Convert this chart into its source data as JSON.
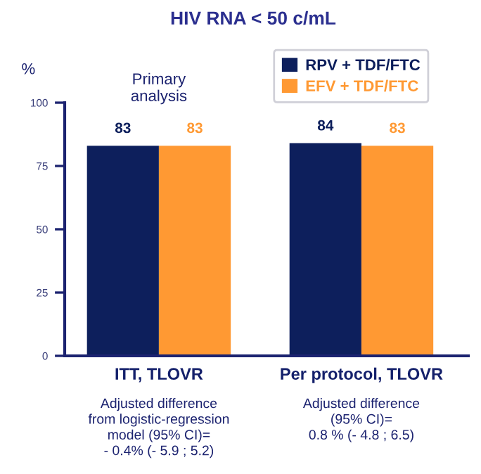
{
  "chart_data": {
    "type": "bar",
    "title": "HIV RNA < 50 c/mL",
    "ylabel": "%",
    "categories": [
      "ITT, TLOVR",
      "Per protocol, TLOVR"
    ],
    "series": [
      {
        "name": "RPV + TDF/FTC",
        "color": "#0d1f5c",
        "values": [
          83,
          84
        ]
      },
      {
        "name": "EFV + TDF/FTC",
        "color": "#ff9933",
        "values": [
          83,
          83
        ]
      }
    ],
    "ylim": [
      0,
      100
    ],
    "yticks": [
      0,
      25,
      50,
      75,
      100
    ],
    "data_labels": true,
    "legend": "top right",
    "annotations": [
      "Primary\nanalysis",
      "Adjusted difference\nfrom logistic-regression\nmodel (95% CI)=\n- 0.4% (- 5.9 ; 5.2)",
      "Adjusted difference\n(95% CI)=\n0.8 % (- 4.8 ; 6.5)"
    ]
  }
}
